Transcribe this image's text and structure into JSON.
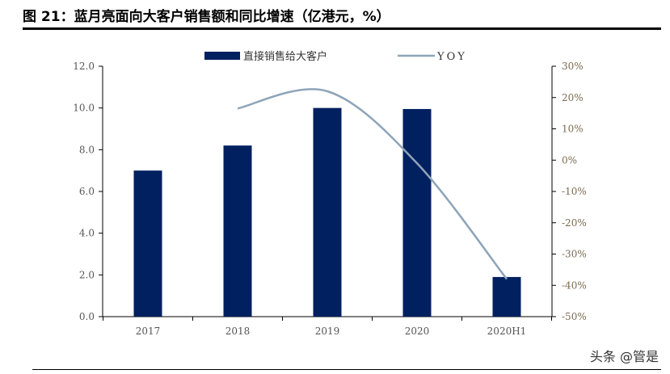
{
  "title": "图 21：蓝月亮面向大客户销售额和同比增速（亿港元，%）",
  "watermark": "头条 @管是",
  "chart_data": {
    "type": "bar+line",
    "categories": [
      "2017",
      "2018",
      "2019",
      "2020",
      "2020H1"
    ],
    "series": [
      {
        "name": "直接销售给大客户",
        "type": "bar",
        "axis": "left",
        "color": "#002060",
        "values": [
          7.0,
          8.2,
          10.0,
          9.95,
          1.9
        ]
      },
      {
        "name": "YOY",
        "type": "line",
        "axis": "right",
        "color": "#8EA4B8",
        "values": [
          null,
          16.5,
          22.0,
          -1.0,
          -38.0
        ],
        "smooth": true
      }
    ],
    "left_axis": {
      "range": [
        0,
        12
      ],
      "ticks": [
        "0.0",
        "2.0",
        "4.0",
        "6.0",
        "8.0",
        "10.0",
        "12.0"
      ]
    },
    "right_axis": {
      "range": [
        -50,
        30
      ],
      "ticks": [
        "-50%",
        "-40%",
        "-30%",
        "-20%",
        "-10%",
        "0%",
        "10%",
        "20%",
        "30%"
      ]
    },
    "legend_placement": "top-center",
    "grid": false
  }
}
